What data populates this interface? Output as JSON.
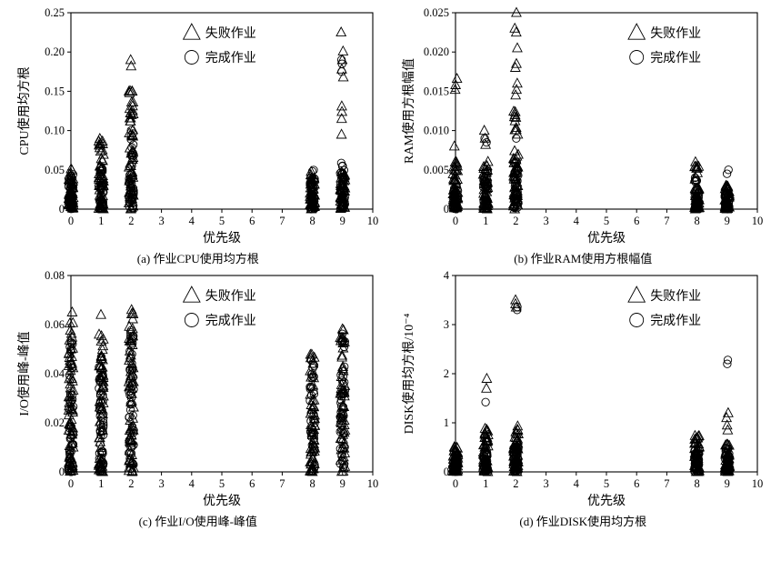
{
  "figure": {
    "description_labels": {
      "failed_jobs": "失败作业",
      "completed_jobs": "完成作业"
    }
  },
  "chart_data": [
    {
      "id": "a",
      "type": "scatter",
      "title": "(a) 作业CPU使用均方根",
      "xlabel": "优先级",
      "ylabel": "CPU使用均方根",
      "xlim": [
        0,
        10
      ],
      "ylim": [
        0,
        0.25
      ],
      "xtick_values": [
        0,
        1,
        2,
        3,
        4,
        5,
        6,
        7,
        8,
        9,
        10
      ],
      "xtick_labels": [
        "0",
        "1",
        "2",
        "3",
        "4",
        "5",
        "6",
        "7",
        "8",
        "9",
        "10"
      ],
      "ytick_values": [
        0,
        0.05,
        0.1,
        0.15,
        0.2,
        0.25
      ],
      "ytick_labels": [
        "0",
        "0.05",
        "0.10",
        "0.15",
        "0.20",
        "0.25"
      ],
      "legend_position": "top-center",
      "legend_x": 0.4,
      "series": [
        {
          "name": "失败作业",
          "marker": "triangle",
          "clusters": [
            [
              0,
              0,
              0.053,
              50
            ],
            [
              1,
              0,
              0.092,
              52
            ],
            [
              2,
              0,
              0.155,
              56
            ],
            [
              8,
              0,
              0.048,
              45
            ],
            [
              9,
              0,
              0.047,
              45
            ]
          ],
          "points": [
            [
              2,
              0.182
            ],
            [
              2,
              0.19
            ],
            [
              9,
              0.095
            ],
            [
              9,
              0.115
            ],
            [
              9,
              0.124
            ],
            [
              9,
              0.131
            ],
            [
              9,
              0.168
            ],
            [
              9,
              0.178
            ],
            [
              9,
              0.19
            ],
            [
              9,
              0.201
            ],
            [
              9,
              0.225
            ]
          ]
        },
        {
          "name": "完成作业",
          "marker": "circle",
          "clusters": [
            [
              0,
              0,
              0.045,
              40
            ],
            [
              1,
              0,
              0.055,
              40
            ],
            [
              2,
              0,
              0.105,
              45
            ],
            [
              8,
              0,
              0.052,
              40
            ],
            [
              9,
              0,
              0.06,
              40
            ]
          ],
          "points": [
            [
              9,
              0.175
            ],
            [
              9,
              0.185
            ],
            [
              9,
              0.19
            ]
          ]
        }
      ]
    },
    {
      "id": "b",
      "type": "scatter",
      "title": "(b) 作业RAM使用方根幅值",
      "xlabel": "优先级",
      "ylabel": "RAM使用方根幅值",
      "xlim": [
        0,
        10
      ],
      "ylim": [
        0,
        0.025
      ],
      "xtick_values": [
        0,
        1,
        2,
        3,
        4,
        5,
        6,
        7,
        8,
        9,
        10
      ],
      "xtick_labels": [
        "0",
        "1",
        "2",
        "3",
        "4",
        "5",
        "6",
        "7",
        "8",
        "9",
        "10"
      ],
      "ytick_values": [
        0,
        0.005,
        0.01,
        0.015,
        0.02,
        0.025
      ],
      "ytick_labels": [
        "0",
        "0.005",
        "0.010",
        "0.015",
        "0.020",
        "0.025"
      ],
      "legend_position": "top-right",
      "legend_x": 0.6,
      "series": [
        {
          "name": "失败作业",
          "marker": "triangle",
          "clusters": [
            [
              0,
              0,
              0.006,
              50
            ],
            [
              1,
              0,
              0.0062,
              50
            ],
            [
              2,
              0,
              0.0125,
              56
            ],
            [
              8,
              0,
              0.0055,
              45
            ],
            [
              9,
              0,
              0.003,
              45
            ]
          ],
          "points": [
            [
              0,
              0.008
            ],
            [
              0,
              0.0152
            ],
            [
              0,
              0.0158
            ],
            [
              0,
              0.0166
            ],
            [
              1,
              0.0082
            ],
            [
              1,
              0.009
            ],
            [
              1,
              0.01
            ],
            [
              2,
              0.0145
            ],
            [
              2,
              0.0152
            ],
            [
              2,
              0.016
            ],
            [
              2,
              0.018
            ],
            [
              2,
              0.0185
            ],
            [
              2,
              0.0205
            ],
            [
              2,
              0.0225
            ],
            [
              2,
              0.023
            ],
            [
              2,
              0.025
            ],
            [
              8,
              0.006
            ]
          ]
        },
        {
          "name": "完成作业",
          "marker": "circle",
          "clusters": [
            [
              0,
              0,
              0.003,
              35
            ],
            [
              1,
              0,
              0.005,
              35
            ],
            [
              2,
              0,
              0.006,
              40
            ],
            [
              8,
              0,
              0.004,
              35
            ],
            [
              9,
              0,
              0.002,
              35
            ]
          ],
          "points": [
            [
              1,
              0.0085
            ],
            [
              1,
              0.009
            ],
            [
              2,
              0.009
            ],
            [
              9,
              0.0045
            ],
            [
              9,
              0.005
            ]
          ]
        }
      ]
    },
    {
      "id": "c",
      "type": "scatter",
      "title": "(c) 作业I/O使用峰-峰值",
      "xlabel": "优先级",
      "ylabel": "I/O使用峰-峰值",
      "xlim": [
        0,
        10
      ],
      "ylim": [
        0,
        0.08
      ],
      "xtick_values": [
        0,
        1,
        2,
        3,
        4,
        5,
        6,
        7,
        8,
        9,
        10
      ],
      "xtick_labels": [
        "0",
        "1",
        "2",
        "3",
        "4",
        "5",
        "6",
        "7",
        "8",
        "9",
        "10"
      ],
      "ytick_values": [
        0,
        0.02,
        0.04,
        0.06,
        0.08
      ],
      "ytick_labels": [
        "0",
        "0.02",
        "0.04",
        "0.06",
        "0.08"
      ],
      "legend_position": "top-center",
      "legend_x": 0.4,
      "series": [
        {
          "name": "失败作业",
          "marker": "triangle",
          "clusters": [
            [
              0,
              0,
              0.062,
              62
            ],
            [
              1,
              0,
              0.06,
              60
            ],
            [
              2,
              0,
              0.065,
              62
            ],
            [
              8,
              0,
              0.05,
              55
            ],
            [
              9,
              0,
              0.06,
              55
            ]
          ],
          "points": [
            [
              0,
              0.065
            ],
            [
              1,
              0.064
            ],
            [
              2,
              0.066
            ]
          ]
        },
        {
          "name": "完成作业",
          "marker": "circle",
          "clusters": [
            [
              0,
              0,
              0.055,
              50
            ],
            [
              1,
              0,
              0.047,
              50
            ],
            [
              2,
              0,
              0.06,
              50
            ],
            [
              8,
              0,
              0.046,
              45
            ],
            [
              9,
              0,
              0.057,
              45
            ]
          ],
          "points": []
        }
      ]
    },
    {
      "id": "d",
      "type": "scatter",
      "title": "(d) 作业DISK使用均方根",
      "xlabel": "优先级",
      "ylabel": "DISK使用均方根/10⁻⁴",
      "xlim": [
        0,
        10
      ],
      "ylim": [
        0,
        4
      ],
      "xtick_values": [
        0,
        1,
        2,
        3,
        4,
        5,
        6,
        7,
        8,
        9,
        10
      ],
      "xtick_labels": [
        "0",
        "1",
        "2",
        "3",
        "4",
        "5",
        "6",
        "7",
        "8",
        "9",
        "10"
      ],
      "ytick_values": [
        0,
        1,
        2,
        3,
        4
      ],
      "ytick_labels": [
        "0",
        "1",
        "2",
        "3",
        "4"
      ],
      "legend_position": "top-right",
      "legend_x": 0.6,
      "series": [
        {
          "name": "失败作业",
          "marker": "triangle",
          "clusters": [
            [
              0,
              0,
              0.52,
              50
            ],
            [
              1,
              0,
              0.9,
              50
            ],
            [
              2,
              0,
              0.95,
              55
            ],
            [
              8,
              0,
              0.75,
              45
            ],
            [
              9,
              0,
              0.6,
              45
            ]
          ],
          "points": [
            [
              1,
              1.7
            ],
            [
              1,
              1.9
            ],
            [
              2,
              3.35
            ],
            [
              2,
              3.42
            ],
            [
              2,
              3.5
            ],
            [
              9,
              0.85
            ],
            [
              9,
              0.95
            ],
            [
              9,
              1.1
            ],
            [
              9,
              1.2
            ]
          ]
        },
        {
          "name": "完成作业",
          "marker": "circle",
          "clusters": [
            [
              0,
              0,
              0.35,
              40
            ],
            [
              1,
              0,
              0.4,
              40
            ],
            [
              2,
              0,
              0.5,
              40
            ],
            [
              8,
              0,
              0.45,
              40
            ],
            [
              9,
              0,
              0.5,
              40
            ]
          ],
          "points": [
            [
              1,
              1.42
            ],
            [
              2,
              3.3
            ],
            [
              2,
              3.36
            ],
            [
              9,
              2.2
            ],
            [
              9,
              2.28
            ]
          ]
        }
      ]
    }
  ]
}
